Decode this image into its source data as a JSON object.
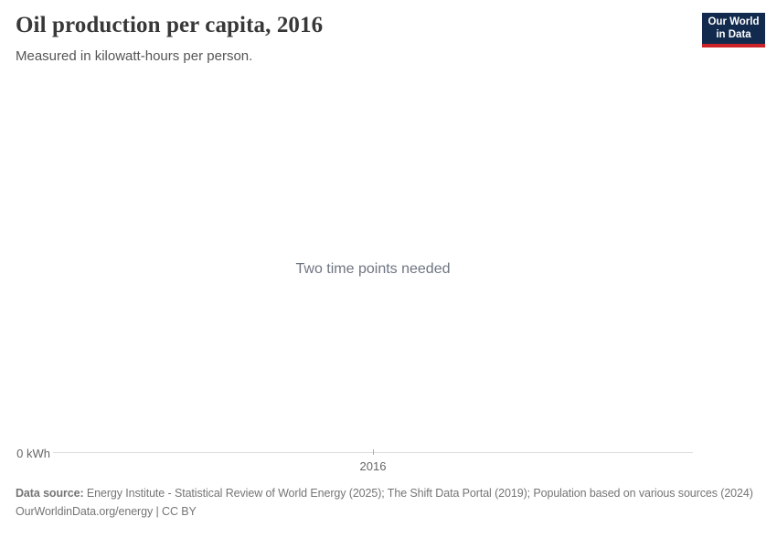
{
  "header": {
    "title": "Oil production per capita, 2016",
    "subtitle": "Measured in kilowatt-hours per person.",
    "logo": {
      "line1": "Our World",
      "line2": "in Data"
    }
  },
  "chart": {
    "message": "Two time points needed",
    "y_axis_label": "0 kWh",
    "x_tick_label": "2016"
  },
  "chart_data": {
    "type": "line",
    "title": "Oil production per capita, 2016",
    "subtitle": "Measured in kilowatt-hours per person.",
    "x": [
      "2016"
    ],
    "series": [],
    "ylabel": "kWh",
    "y_axis_ticks": [
      "0 kWh"
    ],
    "x_axis_ticks": [
      "2016"
    ],
    "ylim_bottom_label": "0 kWh",
    "grid": false,
    "annotations": [
      "Two time points needed"
    ]
  },
  "footer": {
    "source_label": "Data source:",
    "source_text": " Energy Institute - Statistical Review of World Energy (2025); The Shift Data Portal (2019); Population based on various sources (2024)",
    "license_text": "OurWorldinData.org/energy | CC BY"
  },
  "colors": {
    "logo_navy": "#122a4d",
    "logo_red": "#cd2328",
    "title_text": "#383838",
    "subtitle_text": "#555555",
    "message_text": "#6e7581",
    "axis_line": "#dddddd",
    "axis_text": "#666666",
    "footer_text": "#757575",
    "background": "#ffffff"
  }
}
